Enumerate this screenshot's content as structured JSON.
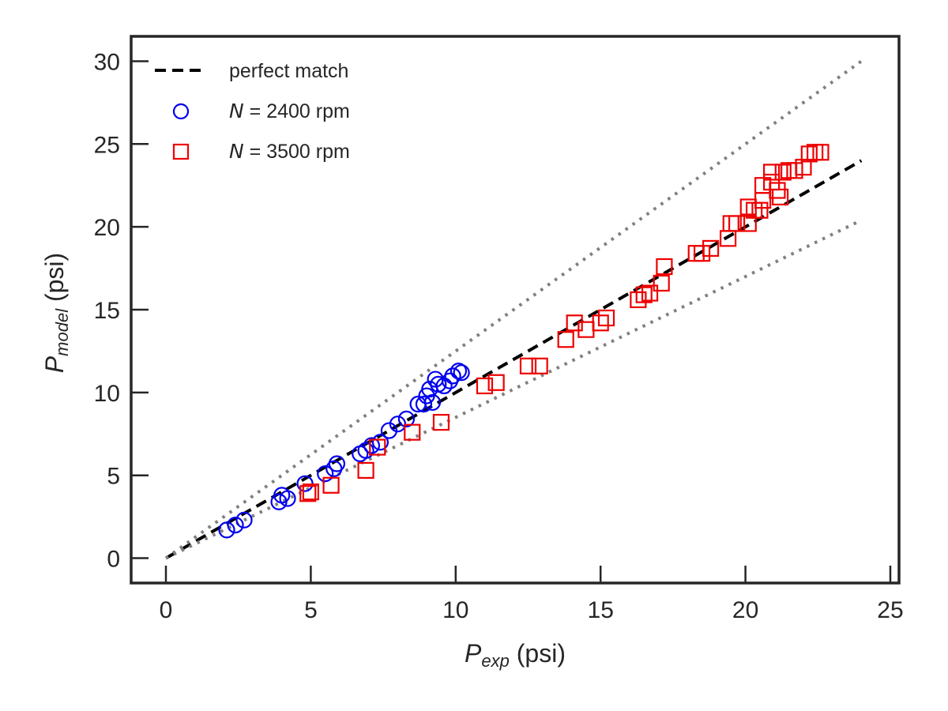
{
  "chart_data": {
    "type": "scatter",
    "xlabel": {
      "var": "P",
      "sub": "exp",
      "unit": " (psi)"
    },
    "ylabel": {
      "var": "P",
      "sub": "model",
      "unit": " (psi)"
    },
    "xlim": [
      -1.2,
      25.3
    ],
    "ylim": [
      -1.5,
      31.5
    ],
    "xticks": [
      0,
      5,
      10,
      15,
      20,
      25
    ],
    "yticks": [
      0,
      5,
      10,
      15,
      20,
      25,
      30
    ],
    "xtick_labels": [
      "0",
      "5",
      "10",
      "15",
      "20",
      "25"
    ],
    "ytick_labels": [
      "0",
      "5",
      "10",
      "15",
      "20",
      "25",
      "30"
    ],
    "grid": false,
    "legend_position": "top-left",
    "reference_lines": [
      {
        "name": "perfect match",
        "style": "dashed",
        "color": "#000000",
        "x": [
          0,
          24
        ],
        "y": [
          0,
          24
        ]
      },
      {
        "style": "dotted",
        "color": "#808080",
        "x": [
          0,
          24
        ],
        "y": [
          0,
          30
        ]
      },
      {
        "style": "dotted",
        "color": "#808080",
        "x": [
          0,
          24
        ],
        "y": [
          0,
          20.4
        ]
      }
    ],
    "series": [
      {
        "name_var": "N",
        "name_rest": " = 2400 rpm",
        "marker": "circle",
        "color": "#0000ee",
        "points": [
          [
            2.1,
            1.7
          ],
          [
            2.4,
            2.0
          ],
          [
            2.7,
            2.3
          ],
          [
            3.9,
            3.4
          ],
          [
            4.0,
            3.8
          ],
          [
            4.2,
            3.6
          ],
          [
            4.8,
            4.5
          ],
          [
            5.5,
            5.1
          ],
          [
            5.8,
            5.4
          ],
          [
            5.9,
            5.7
          ],
          [
            6.7,
            6.3
          ],
          [
            6.9,
            6.5
          ],
          [
            7.1,
            6.8
          ],
          [
            7.4,
            7.0
          ],
          [
            7.7,
            7.7
          ],
          [
            8.0,
            8.1
          ],
          [
            8.3,
            8.4
          ],
          [
            8.7,
            9.3
          ],
          [
            8.9,
            9.3
          ],
          [
            9.0,
            9.8
          ],
          [
            9.1,
            10.2
          ],
          [
            9.2,
            9.4
          ],
          [
            9.3,
            10.8
          ],
          [
            9.4,
            10.5
          ],
          [
            9.6,
            10.4
          ],
          [
            9.8,
            10.7
          ],
          [
            9.9,
            11.0
          ],
          [
            10.1,
            11.3
          ],
          [
            10.2,
            11.2
          ]
        ]
      },
      {
        "name_var": "N",
        "name_rest": " = 3500 rpm",
        "marker": "square",
        "color": "#ee0000",
        "points": [
          [
            4.9,
            3.9
          ],
          [
            5.0,
            4.0
          ],
          [
            5.7,
            4.4
          ],
          [
            6.9,
            5.3
          ],
          [
            7.3,
            6.7
          ],
          [
            8.5,
            7.6
          ],
          [
            9.5,
            8.2
          ],
          [
            11.0,
            10.4
          ],
          [
            11.4,
            10.6
          ],
          [
            12.5,
            11.6
          ],
          [
            12.9,
            11.6
          ],
          [
            13.8,
            13.2
          ],
          [
            14.1,
            14.2
          ],
          [
            14.5,
            13.8
          ],
          [
            15.0,
            14.2
          ],
          [
            15.2,
            14.5
          ],
          [
            16.3,
            15.6
          ],
          [
            16.5,
            15.9
          ],
          [
            16.7,
            16.0
          ],
          [
            17.1,
            16.6
          ],
          [
            17.2,
            17.6
          ],
          [
            18.3,
            18.4
          ],
          [
            18.5,
            18.4
          ],
          [
            18.8,
            18.7
          ],
          [
            19.4,
            19.3
          ],
          [
            19.5,
            20.2
          ],
          [
            19.7,
            20.2
          ],
          [
            20.1,
            20.2
          ],
          [
            20.1,
            21.2
          ],
          [
            20.3,
            21.0
          ],
          [
            20.5,
            21.0
          ],
          [
            20.6,
            21.6
          ],
          [
            20.6,
            22.5
          ],
          [
            20.9,
            22.7
          ],
          [
            20.9,
            23.3
          ],
          [
            21.1,
            22.2
          ],
          [
            21.2,
            21.8
          ],
          [
            21.3,
            23.3
          ],
          [
            21.5,
            23.4
          ],
          [
            21.7,
            23.4
          ],
          [
            22.0,
            23.6
          ],
          [
            22.2,
            24.4
          ],
          [
            22.4,
            24.5
          ],
          [
            22.6,
            24.5
          ]
        ]
      }
    ]
  },
  "legend": {
    "items": [
      {
        "kind": "line",
        "label": "perfect match"
      },
      {
        "kind": "series",
        "series_index": 0
      },
      {
        "kind": "series",
        "series_index": 1
      }
    ]
  }
}
